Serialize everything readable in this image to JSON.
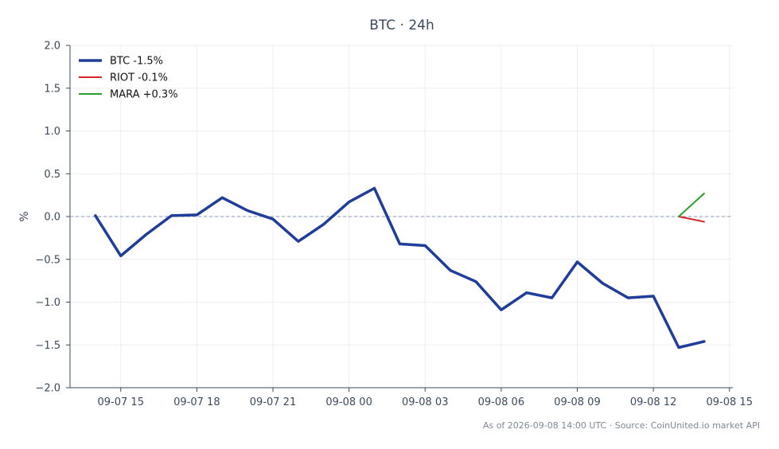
{
  "chart_data": {
    "type": "line",
    "title": "BTC · 24h",
    "xlabel": "",
    "ylabel": "%",
    "ylim": [
      -2.0,
      2.0
    ],
    "yticks": [
      "2.0",
      "1.5",
      "1.0",
      "0.5",
      "0.0",
      "−0.5",
      "−1.0",
      "−1.5",
      "−2.0"
    ],
    "ytick_values": [
      2.0,
      1.5,
      1.0,
      0.5,
      0.0,
      -0.5,
      -1.0,
      -1.5,
      -2.0
    ],
    "xlim": [
      "2026-09-07 13:00",
      "2026-09-08 15:08"
    ],
    "xticks": [
      "09-07 15",
      "09-07 18",
      "09-07 21",
      "09-08 00",
      "09-08 03",
      "09-08 06",
      "09-08 09",
      "09-08 12",
      "09-08 15"
    ],
    "xtick_values": [
      "2026-09-07 15:00",
      "2026-09-07 18:00",
      "2026-09-07 21:00",
      "2026-09-08 00:00",
      "2026-09-08 03:00",
      "2026-09-08 06:00",
      "2026-09-08 09:00",
      "2026-09-08 12:00",
      "2026-09-08 15:00"
    ],
    "grid": true,
    "reference_line": 0.0,
    "legend_position": "top-left",
    "series": [
      {
        "name": "BTC -1.5%",
        "color": "#1f3d99",
        "x": [
          "2026-09-07 14:00",
          "2026-09-07 15:00",
          "2026-09-07 16:00",
          "2026-09-07 17:00",
          "2026-09-07 18:00",
          "2026-09-07 19:00",
          "2026-09-07 20:00",
          "2026-09-07 21:00",
          "2026-09-07 22:00",
          "2026-09-07 23:00",
          "2026-09-08 00:00",
          "2026-09-08 01:00",
          "2026-09-08 02:00",
          "2026-09-08 03:00",
          "2026-09-08 04:00",
          "2026-09-08 05:00",
          "2026-09-08 06:00",
          "2026-09-08 07:00",
          "2026-09-08 08:00",
          "2026-09-08 09:00",
          "2026-09-08 10:00",
          "2026-09-08 11:00",
          "2026-09-08 12:00",
          "2026-09-08 13:00",
          "2026-09-08 14:00"
        ],
        "values": [
          0.01,
          -0.46,
          -0.21,
          0.01,
          0.02,
          0.22,
          0.07,
          -0.03,
          -0.29,
          -0.09,
          0.17,
          0.33,
          -0.32,
          -0.34,
          -0.63,
          -0.76,
          -1.09,
          -0.89,
          -0.95,
          -0.53,
          -0.78,
          -0.95,
          -0.93,
          -1.53,
          -1.46
        ]
      },
      {
        "name": "RIOT -0.1%",
        "color": "#d62728",
        "x": [
          "2026-09-08 13:00",
          "2026-09-08 14:00"
        ],
        "values": [
          0.0,
          -0.06
        ]
      },
      {
        "name": "MARA +0.3%",
        "color": "#2ca02c",
        "x": [
          "2026-09-08 13:00",
          "2026-09-08 14:00"
        ],
        "values": [
          0.0,
          0.27
        ]
      }
    ]
  },
  "footer": "As of 2026-09-08 14:00 UTC · Source: CoinUnited.io market API"
}
